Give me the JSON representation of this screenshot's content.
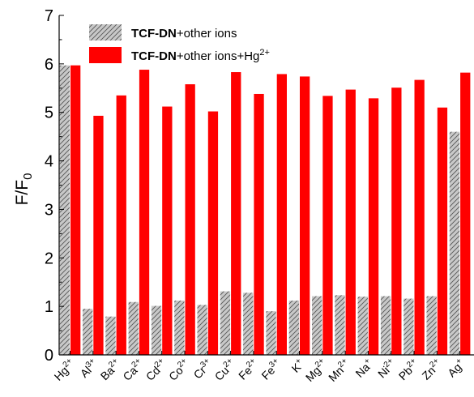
{
  "chart_data": {
    "type": "bar",
    "ylabel": "F/F",
    "ylabel_sub": "0",
    "ylim": [
      0,
      7
    ],
    "yticks": [
      0,
      1,
      2,
      3,
      4,
      5,
      6,
      7
    ],
    "categories": [
      {
        "base": "Hg",
        "sup": "2+"
      },
      {
        "base": "Al",
        "sup": "3+"
      },
      {
        "base": "Ba",
        "sup": "2+"
      },
      {
        "base": "Ca",
        "sup": "2+"
      },
      {
        "base": "Cd",
        "sup": "2+"
      },
      {
        "base": "Co",
        "sup": "2+"
      },
      {
        "base": "Cr",
        "sup": "3+"
      },
      {
        "base": "Cu",
        "sup": "2+"
      },
      {
        "base": "Fe",
        "sup": "2+"
      },
      {
        "base": "Fe",
        "sup": "3+"
      },
      {
        "base": "K",
        "sup": "+"
      },
      {
        "base": "Mg",
        "sup": "2+"
      },
      {
        "base": "Mn",
        "sup": "2+"
      },
      {
        "base": "Na",
        "sup": "+"
      },
      {
        "base": "Ni",
        "sup": "2+"
      },
      {
        "base": "Pb",
        "sup": "2+"
      },
      {
        "base": "Zn",
        "sup": "2+"
      },
      {
        "base": "Ag",
        "sup": "+"
      }
    ],
    "series": [
      {
        "legend_bold": "TCF-DN",
        "legend_rest": "+other ions",
        "legend_sup": "",
        "color": "#c0c0c0",
        "pattern": "hatch",
        "values": [
          5.97,
          0.95,
          0.79,
          1.09,
          1.01,
          1.12,
          1.03,
          1.31,
          1.28,
          0.9,
          1.12,
          1.21,
          1.23,
          1.2,
          1.21,
          1.16,
          1.21,
          4.6
        ]
      },
      {
        "legend_bold": "TCF-DN",
        "legend_rest": "+other ions+Hg",
        "legend_sup": "2+",
        "color": "#ff0000",
        "pattern": "solid",
        "values": [
          5.97,
          4.93,
          5.35,
          5.88,
          5.12,
          5.58,
          5.02,
          5.83,
          5.38,
          5.79,
          5.74,
          5.34,
          5.47,
          5.29,
          5.51,
          5.67,
          5.1,
          5.82
        ]
      }
    ],
    "legend_position": "top-left",
    "grid": false
  }
}
